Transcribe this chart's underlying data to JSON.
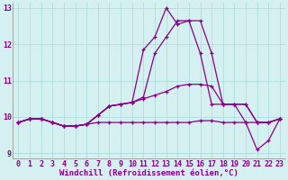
{
  "xlabel": "Windchill (Refroidissement éolien,°C)",
  "background_color": "#d4f0f0",
  "grid_color": "#b0dede",
  "line_color": "#880088",
  "xlim": [
    -0.5,
    23.5
  ],
  "ylim": [
    8.85,
    13.15
  ],
  "yticks": [
    9,
    10,
    11,
    12,
    13
  ],
  "xticks": [
    0,
    1,
    2,
    3,
    4,
    5,
    6,
    7,
    8,
    9,
    10,
    11,
    12,
    13,
    14,
    15,
    16,
    17,
    18,
    19,
    20,
    21,
    22,
    23
  ],
  "series": [
    [
      9.85,
      9.95,
      9.95,
      9.85,
      9.75,
      9.75,
      9.8,
      10.05,
      10.3,
      10.35,
      10.4,
      10.55,
      11.75,
      12.2,
      12.65,
      12.65,
      12.65,
      11.75,
      10.35,
      10.35,
      10.35,
      9.85,
      9.85,
      9.95
    ],
    [
      9.85,
      9.95,
      9.95,
      9.85,
      9.75,
      9.75,
      9.8,
      10.05,
      10.3,
      10.35,
      10.4,
      10.5,
      10.6,
      10.7,
      10.85,
      10.9,
      10.9,
      10.85,
      10.35,
      10.35,
      10.35,
      9.85,
      9.85,
      9.95
    ],
    [
      9.85,
      9.95,
      9.95,
      9.85,
      9.75,
      9.75,
      9.8,
      9.85,
      9.85,
      9.85,
      9.85,
      9.85,
      9.85,
      9.85,
      9.85,
      9.85,
      9.9,
      9.9,
      9.85,
      9.85,
      9.85,
      9.85,
      9.85,
      9.95
    ],
    [
      9.85,
      9.95,
      9.95,
      9.85,
      9.75,
      9.75,
      9.8,
      10.05,
      10.3,
      10.35,
      10.4,
      11.85,
      12.2,
      13.0,
      12.55,
      12.65,
      11.75,
      10.35,
      10.35,
      10.35,
      9.85,
      9.1,
      9.35,
      9.95
    ]
  ],
  "marker": "+",
  "markersize": 3,
  "linewidth": 0.9,
  "xlabel_fontsize": 6.5,
  "tick_fontsize": 6
}
